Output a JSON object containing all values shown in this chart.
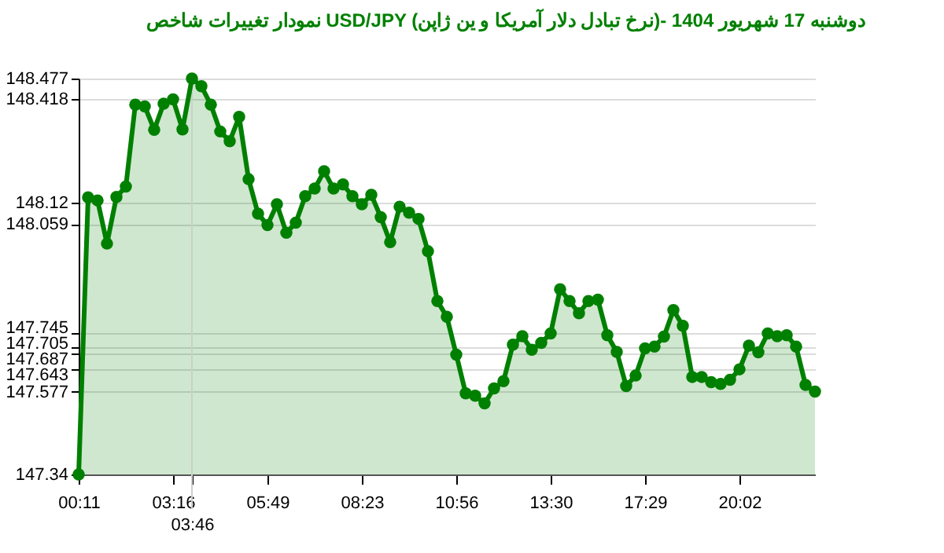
{
  "chart_data": {
    "type": "area",
    "title": "نمودار تغییرات شاخص USD/JPY (نرخ تبادل دلار آمریکا و ین ژاپن)- دوشنبه  17 شهریور 1404",
    "categories": [
      "00:11",
      null,
      null,
      null,
      null,
      null,
      null,
      null,
      null,
      null,
      "03:16",
      null,
      "03:46",
      null,
      null,
      null,
      null,
      null,
      null,
      null,
      "05:49",
      null,
      null,
      null,
      null,
      null,
      null,
      null,
      null,
      null,
      "08:23",
      null,
      null,
      null,
      null,
      null,
      null,
      null,
      null,
      null,
      "10:56",
      null,
      null,
      null,
      null,
      null,
      null,
      null,
      null,
      null,
      "13:30",
      null,
      null,
      null,
      null,
      null,
      null,
      null,
      null,
      null,
      "17:29",
      null,
      null,
      null,
      null,
      null,
      null,
      null,
      null,
      null,
      "20:02",
      null,
      null,
      null,
      null,
      null,
      null,
      null,
      null
    ],
    "series": [
      {
        "color": "#008000",
        "values": [
          147.34,
          148.136,
          148.127,
          148.003,
          148.137,
          148.167,
          148.402,
          148.397,
          148.33,
          148.405,
          148.417,
          148.331,
          148.477,
          148.455,
          148.402,
          148.325,
          148.297,
          148.367,
          148.188,
          148.089,
          148.056,
          148.116,
          148.034,
          148.063,
          148.139,
          148.161,
          148.211,
          148.161,
          148.173,
          148.139,
          148.116,
          148.143,
          148.079,
          148.007,
          148.109,
          148.092,
          148.074,
          147.981,
          147.838,
          147.793,
          147.684,
          147.573,
          147.566,
          147.544,
          147.587,
          147.608,
          147.713,
          147.737,
          147.698,
          147.718,
          147.745,
          147.872,
          147.838,
          147.803,
          147.838,
          147.842,
          147.74,
          147.692,
          147.594,
          147.624,
          147.702,
          147.707,
          147.736,
          147.812,
          147.767,
          147.62,
          147.62,
          147.605,
          147.6,
          147.612,
          147.642,
          147.71,
          147.691,
          147.745,
          147.737,
          147.74,
          147.707,
          147.597,
          147.578
        ]
      }
    ],
    "ylim": [
      147.34,
      148.477
    ],
    "yticks": [
      147.34,
      147.577,
      147.643,
      147.687,
      147.705,
      147.745,
      148.059,
      148.12,
      148.418,
      148.477
    ],
    "ref_lines": [
      {
        "axis": "x",
        "value": "03:46",
        "color": "#c8d2c8"
      }
    ],
    "grid": "y",
    "marker": "circle",
    "line_style": "solid"
  }
}
